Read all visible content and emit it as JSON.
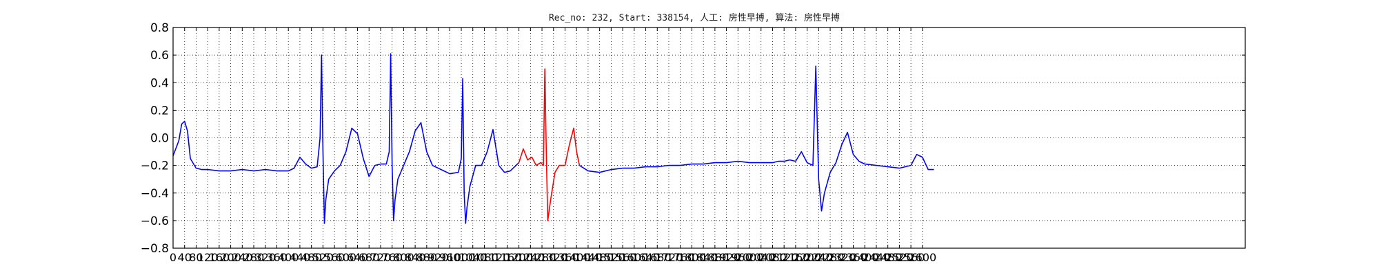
{
  "chart_data": {
    "type": "line",
    "title": "Rec_no: 232, Start: 338154, 人工: 房性早搏, 算法: 房性早搏",
    "xlabel": "",
    "ylabel": "",
    "xlim": [
      0,
      3720
    ],
    "ylim": [
      -0.8,
      0.8
    ],
    "grid": true,
    "y_ticks": [
      0.8,
      0.6,
      0.4,
      0.2,
      0.0,
      -0.2,
      -0.4,
      -0.6,
      -0.8
    ],
    "y_tick_labels": [
      "0.8",
      "0.6",
      "0.4",
      "0.2",
      "0.0",
      "−0.2",
      "−0.4",
      "−0.6",
      "−0.8"
    ],
    "x_ticks": [
      0,
      40,
      80,
      120,
      160,
      200,
      240,
      280,
      320,
      360,
      400,
      440,
      480,
      520,
      560,
      600,
      640,
      680,
      720,
      760,
      800,
      840,
      880,
      920,
      960,
      1000,
      1040,
      1080,
      1120,
      1160,
      1200,
      1240,
      1280,
      1320,
      1360,
      1400,
      1440,
      1480,
      1520,
      1560,
      1600,
      1640,
      1680,
      1720,
      1760,
      1800,
      1840,
      1880,
      1920,
      1960,
      2000,
      2040,
      2080,
      2120,
      2160,
      2200,
      2240,
      2280,
      2320,
      2360,
      2400,
      2440,
      2480,
      2520,
      2560,
      2600
    ],
    "x_tick_labels": [
      "0",
      "40",
      "80",
      "120",
      "160",
      "200",
      "240",
      "280",
      "320",
      "360",
      "400",
      "440",
      "480",
      "520",
      "560",
      "600",
      "640",
      "680",
      "720",
      "760",
      "800",
      "840",
      "880",
      "920",
      "960",
      "1000",
      "1040",
      "1080",
      "1120",
      "1160",
      "1200",
      "1240",
      "1280",
      "1320",
      "1360",
      "1400",
      "1440",
      "1480",
      "1520",
      "1560",
      "1600",
      "1640",
      "1680",
      "1720",
      "1760",
      "1800",
      "1840",
      "1880",
      "1920",
      "1960",
      "2000",
      "2040",
      "2080",
      "2120",
      "2160",
      "2200",
      "2240",
      "2280",
      "2320",
      "2360",
      "2400",
      "2440",
      "2480",
      "2520",
      "2560",
      "2600"
    ],
    "series": [
      {
        "color": "#0000ff",
        "x": [
          0,
          20,
          30,
          40,
          50,
          60,
          80,
          100,
          120,
          160,
          200,
          240,
          280,
          320,
          360,
          400,
          420,
          440,
          460,
          480,
          500,
          510,
          515,
          520,
          525,
          530,
          540,
          560,
          580,
          600,
          620,
          640,
          660,
          680,
          700,
          720,
          740,
          750,
          755,
          760,
          765,
          770,
          780,
          800,
          820,
          840,
          860,
          880,
          900,
          920,
          940,
          960,
          990,
          1000,
          1005,
          1010,
          1015,
          1020,
          1030,
          1050,
          1070,
          1090,
          1110,
          1130,
          1150,
          1170,
          1190,
          1200
        ],
        "y": [
          -0.13,
          -0.02,
          0.1,
          0.12,
          0.05,
          -0.15,
          -0.22,
          -0.23,
          -0.23,
          -0.24,
          -0.24,
          -0.23,
          -0.24,
          -0.23,
          -0.24,
          -0.24,
          -0.22,
          -0.14,
          -0.19,
          -0.22,
          -0.21,
          0.0,
          0.6,
          -0.1,
          -0.62,
          -0.45,
          -0.3,
          -0.24,
          -0.2,
          -0.1,
          0.07,
          0.03,
          -0.15,
          -0.28,
          -0.2,
          -0.19,
          -0.19,
          -0.1,
          0.61,
          -0.2,
          -0.6,
          -0.45,
          -0.3,
          -0.2,
          -0.1,
          0.05,
          0.11,
          -0.1,
          -0.2,
          -0.22,
          -0.24,
          -0.26,
          -0.25,
          -0.15,
          0.43,
          -0.4,
          -0.62,
          -0.5,
          -0.35,
          -0.2,
          -0.2,
          -0.1,
          0.06,
          -0.2,
          -0.25,
          -0.24,
          -0.2,
          -0.18
        ]
      },
      {
        "color": "#ff0000",
        "x": [
          1200,
          1215,
          1230,
          1245,
          1260,
          1275,
          1285,
          1290,
          1295,
          1300,
          1310,
          1325,
          1340,
          1360,
          1375,
          1390,
          1400,
          1410
        ],
        "y": [
          -0.18,
          -0.08,
          -0.16,
          -0.14,
          -0.2,
          -0.18,
          -0.2,
          0.5,
          -0.1,
          -0.6,
          -0.45,
          -0.25,
          -0.2,
          -0.2,
          -0.05,
          0.07,
          -0.1,
          -0.2
        ]
      },
      {
        "color": "#0000ff",
        "x": [
          1410,
          1440,
          1480,
          1520,
          1560,
          1600,
          1640,
          1680,
          1720,
          1760,
          1800,
          1840,
          1880,
          1920,
          1960,
          2000,
          2040,
          2080,
          2100,
          2120,
          2140,
          2160,
          2180,
          2200,
          2220,
          2230,
          2240,
          2250,
          2260,
          2280,
          2300,
          2320,
          2340,
          2360,
          2380,
          2400,
          2440,
          2480,
          2520,
          2560,
          2580,
          2600,
          2620,
          2640
        ],
        "y": [
          -0.2,
          -0.24,
          -0.25,
          -0.23,
          -0.22,
          -0.22,
          -0.21,
          -0.21,
          -0.2,
          -0.2,
          -0.19,
          -0.19,
          -0.18,
          -0.18,
          -0.17,
          -0.18,
          -0.18,
          -0.18,
          -0.17,
          -0.17,
          -0.16,
          -0.17,
          -0.1,
          -0.18,
          -0.2,
          0.52,
          -0.3,
          -0.53,
          -0.4,
          -0.25,
          -0.18,
          -0.05,
          0.04,
          -0.12,
          -0.17,
          -0.19,
          -0.2,
          -0.21,
          -0.22,
          -0.2,
          -0.12,
          -0.14,
          -0.23,
          -0.23
        ]
      }
    ]
  }
}
